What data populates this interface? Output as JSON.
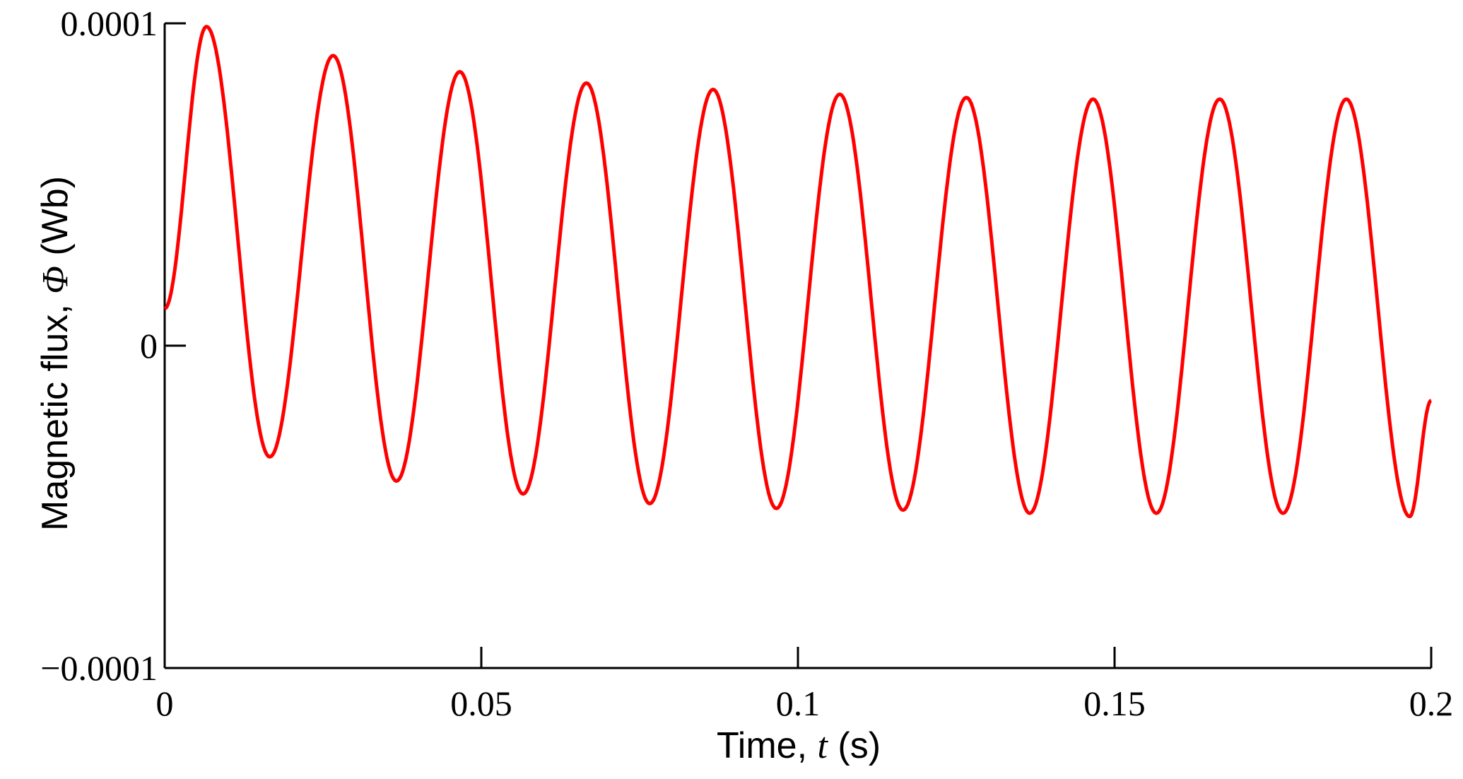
{
  "chart_data": {
    "type": "line",
    "title": "",
    "xlabel": {
      "prefix": "Time, ",
      "symbol": "t",
      "suffix": " (s)"
    },
    "ylabel": {
      "prefix": "Magnetic flux, ",
      "symbol": "Φ",
      "suffix": " (Wb)"
    },
    "xlim": [
      0,
      0.2
    ],
    "ylim": [
      -0.0001,
      0.0001
    ],
    "x_ticks": [
      0,
      0.05,
      0.1,
      0.15,
      0.2
    ],
    "x_tick_labels": [
      "0",
      "0.05",
      "0.1",
      "0.15",
      "0.2"
    ],
    "y_ticks": [
      -0.0001,
      0,
      0.0001
    ],
    "y_tick_labels": [
      "−0.0001",
      "0",
      "0.0001"
    ],
    "grid": false,
    "legend": "none",
    "series": [
      {
        "color": "#ff0000",
        "x": [
          0,
          0.0066,
          0.0166,
          0.0266,
          0.0366,
          0.0466,
          0.0566,
          0.0666,
          0.0766,
          0.0866,
          0.0966,
          0.1066,
          0.1166,
          0.1266,
          0.1366,
          0.1466,
          0.1566,
          0.1666,
          0.1766,
          0.1866,
          0.1966,
          0.2
        ],
        "y": [
          1.15e-05,
          9.9e-05,
          -3.45e-05,
          9e-05,
          -4.2e-05,
          8.5e-05,
          -4.6e-05,
          8.15e-05,
          -4.9e-05,
          7.95e-05,
          -5.05e-05,
          7.8e-05,
          -5.1e-05,
          7.7e-05,
          -5.2e-05,
          7.65e-05,
          -5.2e-05,
          7.65e-05,
          -5.2e-05,
          7.65e-05,
          -5.3e-05,
          -1.7e-05
        ]
      }
    ]
  }
}
